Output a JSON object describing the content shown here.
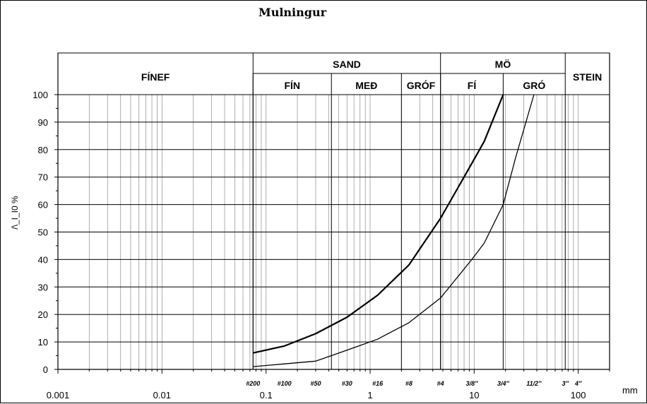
{
  "chart_data": {
    "type": "line",
    "title": "Mulningur",
    "ylabel": "/\\_I_I0 %",
    "x_unit": "mm",
    "x_scale": "log",
    "xlim": [
      0.001,
      200
    ],
    "ylim": [
      0,
      100
    ],
    "y_ticks": [
      "0",
      "10",
      "20",
      "30",
      "40",
      "50",
      "60",
      "70",
      "80",
      "90",
      "100"
    ],
    "decade_labels": [
      {
        "value": 0.001,
        "label": "0.001"
      },
      {
        "value": 0.01,
        "label": "0.01"
      },
      {
        "value": 0.1,
        "label": "0.1"
      },
      {
        "value": 1,
        "label": "1"
      },
      {
        "value": 10,
        "label": "10"
      },
      {
        "value": 100,
        "label": "100"
      }
    ],
    "sieve_labels": [
      {
        "value": 0.075,
        "label": "#200"
      },
      {
        "value": 0.15,
        "label": "#100"
      },
      {
        "value": 0.3,
        "label": "#50"
      },
      {
        "value": 0.6,
        "label": "#30"
      },
      {
        "value": 1.18,
        "label": "#16"
      },
      {
        "value": 2.36,
        "label": "#8"
      },
      {
        "value": 4.75,
        "label": "#4"
      },
      {
        "value": 9.5,
        "label": "3/8″"
      },
      {
        "value": 19,
        "label": "3/4″"
      },
      {
        "value": 37.5,
        "label": "11/2″"
      },
      {
        "value": 75,
        "label": "3″"
      },
      {
        "value": 100,
        "label": "4″"
      }
    ],
    "zones_top": [
      {
        "label": "FÍNEF",
        "from": 0.001,
        "to": 0.075
      },
      {
        "label": "SAND",
        "from": 0.075,
        "to": 4.75
      },
      {
        "label": "MÖ",
        "from": 4.75,
        "to": 75
      },
      {
        "label": "STEIN",
        "from": 75,
        "to": 200
      }
    ],
    "zones_sub": [
      {
        "label": "FÍN",
        "from": 0.075,
        "to": 0.425
      },
      {
        "label": "MEÐ",
        "from": 0.425,
        "to": 2.0
      },
      {
        "label": "GRÓF",
        "from": 2.0,
        "to": 4.75
      },
      {
        "label": "FÍ",
        "from": 4.75,
        "to": 19
      },
      {
        "label": "GRÓ",
        "from": 19,
        "to": 75
      }
    ],
    "series": [
      {
        "x": [
          0.075,
          0.15,
          0.3,
          0.6,
          1.18,
          2.36,
          4.75,
          9.5,
          12.5,
          19
        ],
        "y": [
          6,
          8.5,
          13,
          19,
          27,
          38,
          55,
          75,
          83,
          100
        ],
        "style": "bold"
      },
      {
        "x": [
          0.075,
          0.15,
          0.3,
          0.6,
          1.18,
          2.36,
          4.75,
          9.5,
          12.5,
          19,
          25,
          37.5
        ],
        "y": [
          1,
          2,
          3,
          7,
          11,
          17,
          26,
          40,
          46,
          60,
          77,
          100
        ],
        "style": "thin"
      }
    ],
    "grid": true
  }
}
